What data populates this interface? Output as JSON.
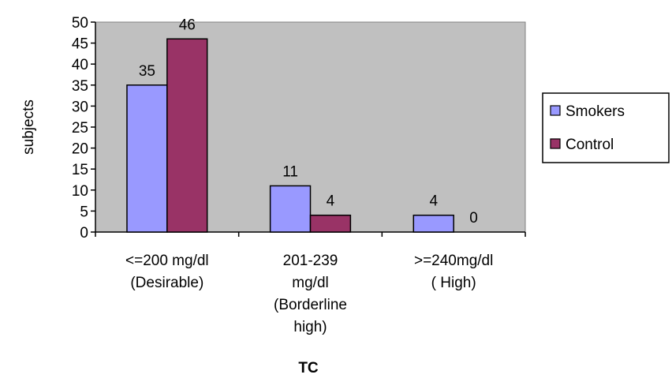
{
  "chart_data": {
    "type": "bar",
    "categories": [
      [
        "<=200 mg/dl",
        "(Desirable)"
      ],
      [
        "201-239",
        "mg/dl",
        "(Borderline",
        "high)"
      ],
      [
        ">=240mg/dl",
        "( High)"
      ]
    ],
    "series": [
      {
        "name": "Smokers",
        "values": [
          35,
          11,
          4
        ],
        "color": "#9999ff"
      },
      {
        "name": "Control",
        "values": [
          46,
          4,
          0
        ],
        "color": "#993366"
      }
    ],
    "xlabel": "TC",
    "ylabel": "subjects",
    "ylim": [
      0,
      50
    ],
    "yticks": [
      0,
      5,
      10,
      15,
      20,
      25,
      30,
      35,
      40,
      45,
      50
    ],
    "plot_background": "#c0c0c0",
    "grid": false,
    "legend_position": "right"
  }
}
